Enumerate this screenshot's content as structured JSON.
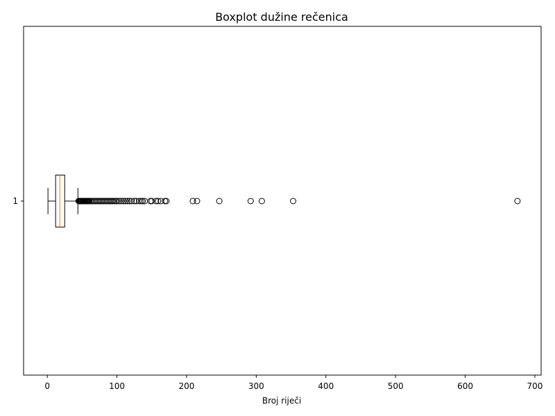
{
  "chart_data": {
    "type": "boxplot",
    "orientation": "horizontal",
    "title": "Boxplot dužine rečenica",
    "xlabel": "Broj riječi",
    "ylabel": "",
    "xlim": [
      -34,
      709
    ],
    "xticks": [
      0,
      100,
      200,
      300,
      400,
      500,
      600,
      700
    ],
    "categories": [
      "1"
    ],
    "box": {
      "whisker_low": 1,
      "q1": 12,
      "median": 18,
      "q3": 25,
      "whisker_high": 44
    },
    "outliers": [
      45,
      46,
      47,
      48,
      49,
      50,
      51,
      52,
      53,
      54,
      55,
      56,
      57,
      58,
      59,
      60,
      62,
      64,
      66,
      68,
      70,
      72,
      74,
      76,
      78,
      80,
      82,
      84,
      86,
      88,
      90,
      92,
      94,
      96,
      98,
      100,
      103,
      106,
      109,
      112,
      115,
      118,
      121,
      125,
      128,
      132,
      135,
      137,
      140,
      148,
      150,
      156,
      159,
      163,
      169,
      171,
      209,
      215,
      247,
      292,
      308,
      353,
      675
    ],
    "colors": {
      "box": "#000000",
      "median": "#ff7f0e",
      "flier": "#000000"
    },
    "grid": false
  }
}
